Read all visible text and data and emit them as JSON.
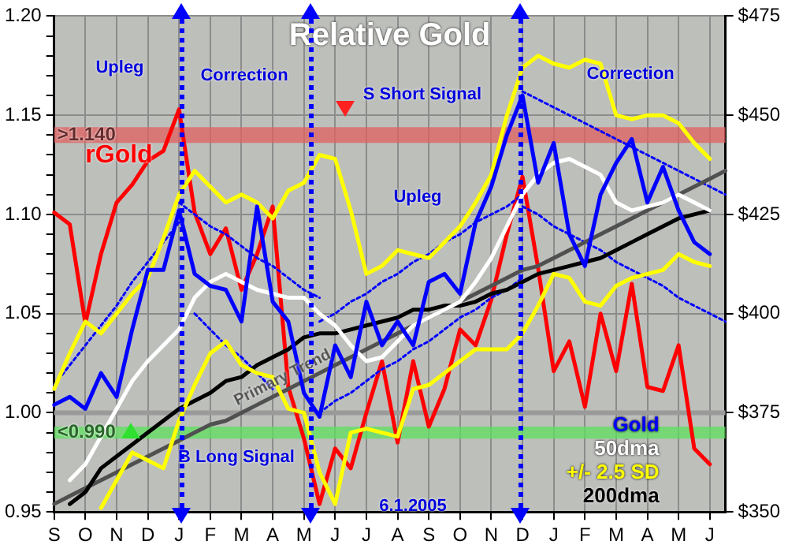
{
  "chart_data": {
    "type": "line",
    "title": "Relative Gold",
    "categories": [
      "S",
      null,
      "O",
      null,
      "N",
      null,
      "D",
      null,
      "J",
      null,
      "F",
      null,
      "M",
      null,
      "A",
      null,
      "M",
      null,
      "J",
      null,
      "J",
      null,
      "A",
      null,
      "S",
      null,
      "O",
      null,
      "N",
      null,
      "D",
      null,
      "J",
      null,
      "F",
      null,
      "M",
      null,
      "A",
      null,
      "M",
      null,
      "J",
      null
    ],
    "ylim": [
      0.95,
      1.2
    ],
    "yticks": [
      {
        "value": 0.95,
        "label": "0.95"
      },
      {
        "value": 0.96,
        "label": null
      },
      {
        "value": 0.97,
        "label": null
      },
      {
        "value": 0.98,
        "label": null
      },
      {
        "value": 0.99,
        "label": null
      },
      {
        "value": 1.0,
        "label": "1.00"
      },
      {
        "value": 1.01,
        "label": null
      },
      {
        "value": 1.02,
        "label": null
      },
      {
        "value": 1.03,
        "label": null
      },
      {
        "value": 1.04,
        "label": null
      },
      {
        "value": 1.05,
        "label": "1.05"
      },
      {
        "value": 1.06,
        "label": null
      },
      {
        "value": 1.07,
        "label": null
      },
      {
        "value": 1.08,
        "label": null
      },
      {
        "value": 1.09,
        "label": null
      },
      {
        "value": 1.1,
        "label": "1.10"
      },
      {
        "value": 1.11,
        "label": null
      },
      {
        "value": 1.12,
        "label": null
      },
      {
        "value": 1.13,
        "label": null
      },
      {
        "value": 1.14,
        "label": null
      },
      {
        "value": 1.15,
        "label": "1.15"
      },
      {
        "value": 1.16,
        "label": null
      },
      {
        "value": 1.17,
        "label": null
      },
      {
        "value": 1.18,
        "label": null
      },
      {
        "value": 1.19,
        "label": null
      },
      {
        "value": 1.2,
        "label": "1.20"
      }
    ],
    "y2lim": [
      350,
      475
    ],
    "y2ticks": [
      {
        "value": 350,
        "label": "$350"
      },
      {
        "value": 375,
        "label": "$375"
      },
      {
        "value": 400,
        "label": "$400"
      },
      {
        "value": 425,
        "label": "$425"
      },
      {
        "value": 450,
        "label": "$450"
      },
      {
        "value": 475,
        "label": "$475"
      }
    ],
    "grid": true,
    "legend": "bottom right",
    "marker": "none",
    "bands": [
      {
        "axis": "y",
        "from": 1.136,
        "to": 1.144,
        "label": ">1.140",
        "color": "#e06060"
      },
      {
        "axis": "y",
        "from": 0.987,
        "to": 0.993,
        "label": "<0.990",
        "color": "#5ee05e"
      }
    ],
    "ref_lines": [
      {
        "axis": "y",
        "value": 1.0,
        "color": "#9a9a9a"
      }
    ],
    "annotations": [
      "Upleg",
      "Correction",
      "S Short Signal",
      "Upleg",
      "Correction",
      "B Long Signal",
      "6.1.2005"
    ],
    "series": [
      {
        "name": "Gold",
        "color": "#0000ff",
        "axis": "y2",
        "values": [
          377,
          379,
          376,
          385,
          379,
          396,
          411,
          411,
          426,
          410,
          407,
          406,
          398,
          427,
          403,
          398,
          380,
          374,
          392,
          384,
          403,
          392,
          398,
          392,
          408,
          410,
          405,
          423,
          432,
          445,
          455,
          433,
          443,
          420,
          412,
          430,
          438,
          444,
          428,
          437,
          426,
          418,
          415,
          null
        ]
      },
      {
        "name": "50dma",
        "color": "#ffffff",
        "axis": "y2",
        "values": [
          null,
          358,
          362,
          369,
          376,
          383,
          388,
          392,
          396,
          404,
          408,
          410,
          408,
          406,
          405,
          404,
          404,
          400,
          397,
          392,
          388,
          389,
          393,
          397,
          399,
          401,
          403,
          408,
          414,
          422,
          430,
          435,
          438,
          439,
          437,
          435,
          428,
          426,
          427,
          428,
          430,
          428,
          426,
          null
        ]
      },
      {
        "name": "+/- 2.5 SD",
        "color": "#ffff00",
        "axis": "y2",
        "values": [
          381,
          390,
          398,
          395,
          400,
          405,
          409,
          419,
          430,
          436,
          432,
          428,
          430,
          428,
          424,
          431,
          433,
          440,
          439,
          426,
          410,
          412,
          416,
          415,
          414,
          418,
          422,
          428,
          435,
          450,
          462,
          465,
          463,
          462,
          464,
          463,
          450,
          449,
          450,
          450,
          448,
          443,
          439,
          null
        ]
      },
      {
        "color": "#ffff00",
        "axis": "y2",
        "values": [
          null,
          null,
          null,
          351,
          358,
          365,
          363,
          361,
          373,
          382,
          390,
          393,
          387,
          385,
          384,
          376,
          375,
          360,
          352,
          370,
          371,
          370,
          369,
          381,
          382,
          385,
          388,
          391,
          391,
          391,
          395,
          402,
          410,
          409,
          403,
          402,
          407,
          409,
          410,
          411,
          415,
          413,
          412,
          null
        ]
      },
      {
        "name": "200dma",
        "color": "#000000",
        "axis": "y2",
        "values": [
          null,
          352,
          355,
          361,
          364,
          367,
          370,
          373,
          376,
          378,
          380,
          383,
          384,
          387,
          389,
          391,
          394,
          395,
          395,
          396,
          397,
          398,
          399,
          401,
          401,
          402,
          402,
          403,
          405,
          406,
          408,
          410,
          411,
          412,
          413,
          414,
          416,
          418,
          420,
          422,
          424,
          425,
          426,
          null
        ]
      },
      {
        "name": "Primary Trend",
        "color": "#505050",
        "axis": "y2",
        "values": [
          352,
          354,
          356,
          358,
          360,
          362,
          364,
          366,
          368,
          370,
          372,
          373,
          375,
          377,
          379,
          381,
          383,
          385,
          387,
          389,
          391,
          393,
          395,
          397,
          399,
          401,
          403,
          405,
          407,
          409,
          411,
          412,
          414,
          416,
          418,
          420,
          422,
          424,
          426,
          428,
          430,
          432,
          434,
          436
        ]
      },
      {
        "color": "#0000ff",
        "axis": "y2",
        "line_style": "dotted",
        "values": [
          382,
          387,
          392,
          397,
          402,
          408,
          413,
          418,
          423,
          null,
          null,
          null,
          null,
          null,
          null,
          null,
          null,
          null,
          null,
          null,
          null,
          null,
          null,
          null,
          null,
          null,
          null,
          null,
          null,
          null,
          null,
          null,
          null,
          null,
          null,
          null,
          null,
          null,
          null,
          null,
          null,
          null,
          null,
          null
        ]
      },
      {
        "color": "#0000ff",
        "axis": "y2",
        "line_style": "dotted",
        "values": [
          null,
          null,
          null,
          null,
          null,
          null,
          null,
          null,
          428,
          425,
          422,
          420,
          417,
          414,
          412,
          409,
          406,
          404,
          null,
          null,
          null,
          null,
          null,
          null,
          null,
          null,
          null,
          null,
          null,
          null,
          null,
          null,
          null,
          null,
          null,
          null,
          null,
          null,
          null,
          null,
          null,
          null,
          null,
          null
        ]
      },
      {
        "color": "#0000ff",
        "axis": "y2",
        "line_style": "dotted",
        "values": [
          null,
          null,
          null,
          null,
          null,
          null,
          null,
          null,
          null,
          400,
          396,
          392,
          389,
          385,
          381,
          null,
          null,
          null,
          null,
          null,
          null,
          null,
          null,
          null,
          null,
          null,
          null,
          null,
          null,
          null,
          null,
          null,
          null,
          null,
          null,
          null,
          null,
          null,
          null,
          null,
          null,
          null,
          null,
          null
        ]
      },
      {
        "color": "#0000ff",
        "axis": "y2",
        "line_style": "dotted",
        "values": [
          null,
          null,
          null,
          null,
          null,
          null,
          null,
          null,
          null,
          null,
          null,
          null,
          null,
          null,
          null,
          null,
          null,
          398,
          400,
          403,
          405,
          408,
          410,
          413,
          415,
          418,
          420,
          423,
          425,
          427,
          430,
          null,
          null,
          null,
          null,
          null,
          null,
          null,
          null,
          null,
          null,
          null,
          null,
          null
        ]
      },
      {
        "color": "#0000ff",
        "axis": "y2",
        "line_style": "dotted",
        "values": [
          null,
          null,
          null,
          null,
          null,
          null,
          null,
          null,
          null,
          null,
          null,
          null,
          null,
          null,
          null,
          null,
          null,
          375,
          378,
          380,
          383,
          386,
          388,
          391,
          393,
          396,
          399,
          401,
          404,
          406,
          409,
          null,
          null,
          null,
          null,
          null,
          null,
          null,
          null,
          null,
          null,
          null,
          null,
          null
        ]
      },
      {
        "color": "#0000ff",
        "axis": "y2",
        "line_style": "dotted",
        "values": [
          null,
          null,
          null,
          null,
          null,
          null,
          null,
          null,
          null,
          null,
          null,
          null,
          null,
          null,
          null,
          null,
          null,
          null,
          null,
          null,
          null,
          null,
          null,
          null,
          null,
          null,
          null,
          null,
          null,
          null,
          456,
          454,
          452,
          450,
          448,
          446,
          444,
          442,
          440,
          438,
          436,
          434,
          432,
          430
        ]
      },
      {
        "color": "#0000ff",
        "axis": "y2",
        "line_style": "dotted",
        "values": [
          null,
          null,
          null,
          null,
          null,
          null,
          null,
          null,
          null,
          null,
          null,
          null,
          null,
          null,
          null,
          null,
          null,
          null,
          null,
          null,
          null,
          null,
          null,
          null,
          null,
          null,
          null,
          null,
          null,
          null,
          427,
          425,
          422,
          420,
          418,
          416,
          413,
          411,
          409,
          407,
          404,
          402,
          400,
          398
        ]
      },
      {
        "name": "rGold",
        "color": "#ff0000",
        "axis": "y",
        "values": [
          1.101,
          1.095,
          1.045,
          1.08,
          1.106,
          1.115,
          1.127,
          1.132,
          1.153,
          1.101,
          1.08,
          1.093,
          1.062,
          1.08,
          1.104,
          1.013,
          0.987,
          0.954,
          0.982,
          0.972,
          1.0,
          1.026,
          0.985,
          1.026,
          0.993,
          1.012,
          1.042,
          1.034,
          1.057,
          1.09,
          1.119,
          1.073,
          1.021,
          1.036,
          1.003,
          1.05,
          1.021,
          1.065,
          1.013,
          1.011,
          1.034,
          0.982,
          0.974,
          null
        ]
      }
    ]
  }
}
